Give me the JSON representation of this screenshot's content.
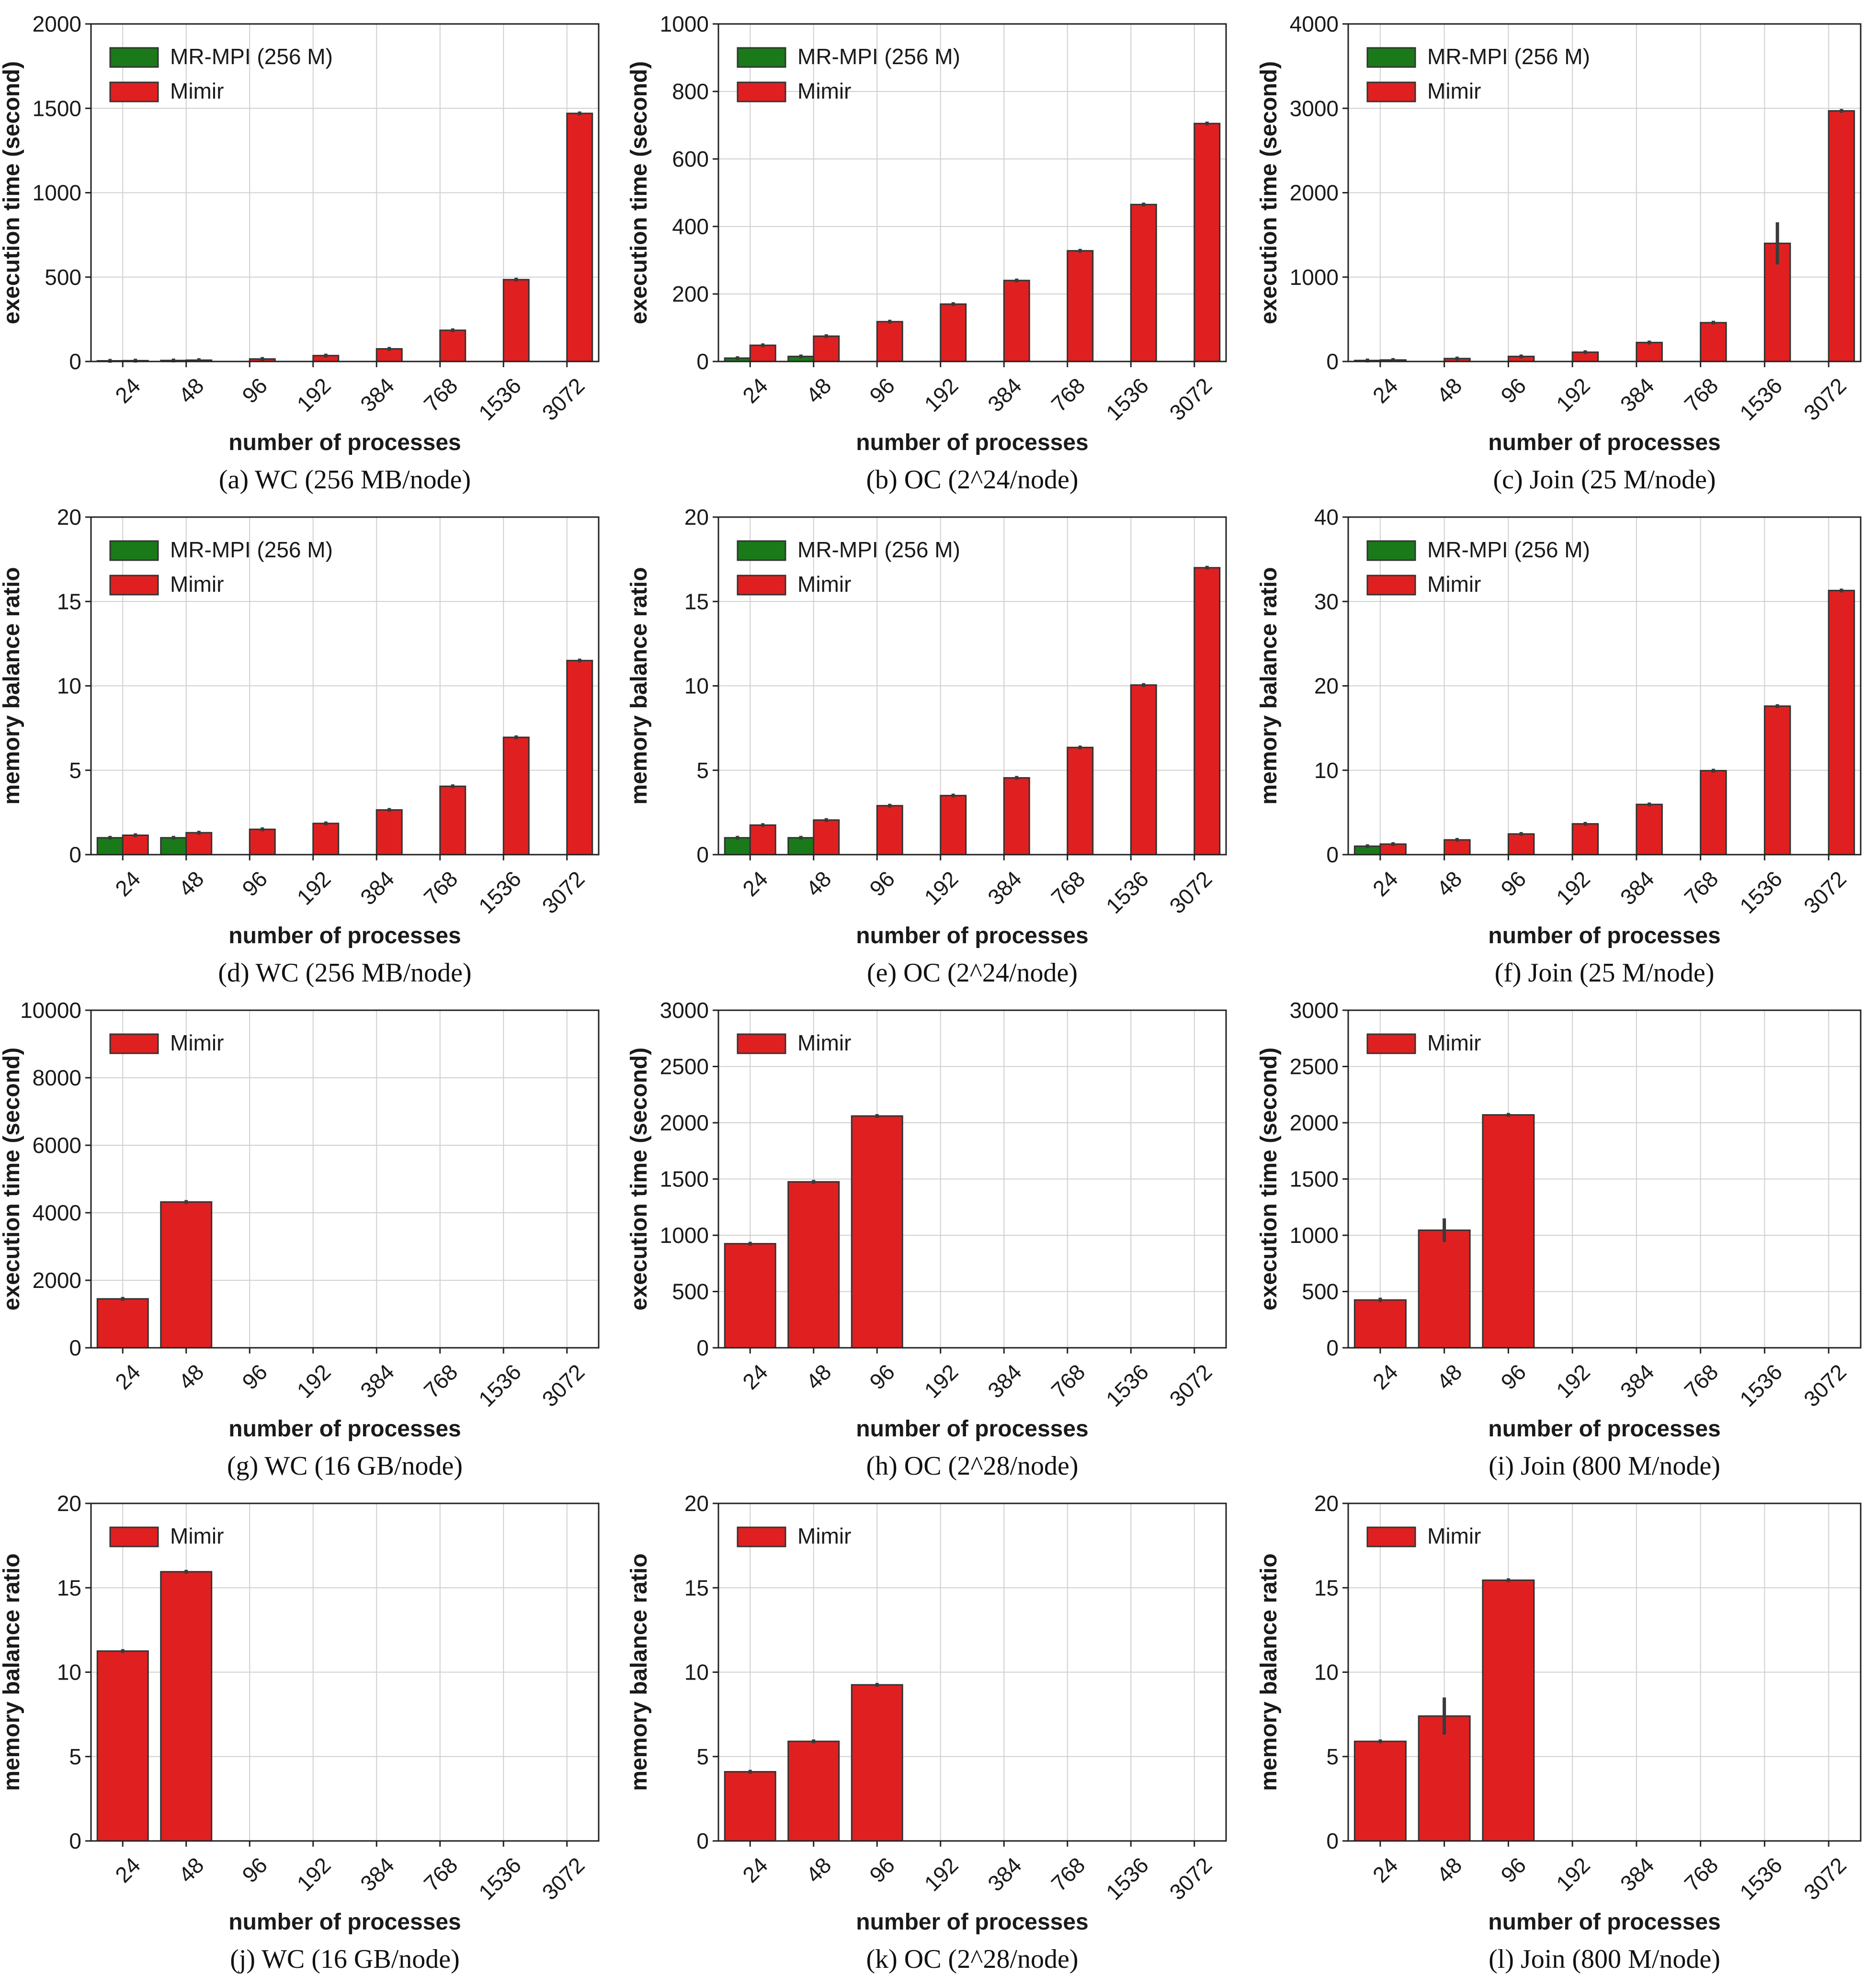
{
  "colors": {
    "mrmpi": "#1a7a1a",
    "mimir": "#e02020",
    "grid": "#d0d0d0",
    "edge": "#333333"
  },
  "chart_data": [
    {
      "type": "bar",
      "caption": "(a) WC (256 MB/node)",
      "xlabel": "number of processes",
      "ylabel": "execution time (second)",
      "categories": [
        "24",
        "48",
        "96",
        "192",
        "384",
        "768",
        "1536",
        "3072"
      ],
      "ylim": [
        0,
        2000
      ],
      "yticks": [
        0,
        500,
        1000,
        1500,
        2000
      ],
      "grid": true,
      "legend_position": "top-left",
      "series": [
        {
          "name": "MR-MPI (256 M)",
          "color": "#1a7a1a",
          "values": [
            4,
            6,
            null,
            null,
            null,
            null,
            null,
            null
          ],
          "errors": [
            0,
            0,
            0,
            0,
            0,
            0,
            0,
            0
          ]
        },
        {
          "name": "Mimir",
          "color": "#e02020",
          "values": [
            5,
            8,
            15,
            35,
            75,
            185,
            485,
            1470
          ],
          "errors": [
            0,
            0,
            0,
            3,
            4,
            4,
            6,
            5
          ]
        }
      ]
    },
    {
      "type": "bar",
      "caption": "(b) OC (2^24/node)",
      "xlabel": "number of processes",
      "ylabel": "execution time (second)",
      "categories": [
        "24",
        "48",
        "96",
        "192",
        "384",
        "768",
        "1536",
        "3072"
      ],
      "ylim": [
        0,
        1000
      ],
      "yticks": [
        0,
        200,
        400,
        600,
        800,
        1000
      ],
      "grid": true,
      "legend_position": "top-left",
      "series": [
        {
          "name": "MR-MPI (256 M)",
          "color": "#1a7a1a",
          "values": [
            10,
            15,
            null,
            null,
            null,
            null,
            null,
            null
          ],
          "errors": [
            0,
            0,
            0,
            0,
            0,
            0,
            0,
            0
          ]
        },
        {
          "name": "Mimir",
          "color": "#e02020",
          "values": [
            48,
            75,
            118,
            170,
            240,
            328,
            465,
            705
          ],
          "errors": [
            1,
            1,
            2,
            2,
            2,
            2,
            3,
            2
          ]
        }
      ]
    },
    {
      "type": "bar",
      "caption": "(c) Join (25 M/node)",
      "xlabel": "number of processes",
      "ylabel": "execution time (second)",
      "categories": [
        "24",
        "48",
        "96",
        "192",
        "384",
        "768",
        "1536",
        "3072"
      ],
      "ylim": [
        0,
        4000
      ],
      "yticks": [
        0,
        1000,
        2000,
        3000,
        4000
      ],
      "grid": true,
      "legend_position": "top-left",
      "series": [
        {
          "name": "MR-MPI (256 M)",
          "color": "#1a7a1a",
          "values": [
            12,
            null,
            null,
            null,
            null,
            null,
            null,
            null
          ],
          "errors": [
            0,
            0,
            0,
            0,
            0,
            0,
            0,
            0
          ]
        },
        {
          "name": "Mimir",
          "color": "#e02020",
          "values": [
            18,
            35,
            60,
            110,
            225,
            460,
            1400,
            2970
          ],
          "errors": [
            0,
            0,
            0,
            5,
            8,
            10,
            250,
            20
          ]
        }
      ]
    },
    {
      "type": "bar",
      "caption": "(d) WC (256 MB/node)",
      "xlabel": "number of processes",
      "ylabel": "memory balance ratio",
      "categories": [
        "24",
        "48",
        "96",
        "192",
        "384",
        "768",
        "1536",
        "3072"
      ],
      "ylim": [
        0,
        20
      ],
      "yticks": [
        0,
        5,
        10,
        15,
        20
      ],
      "grid": true,
      "legend_position": "top-left",
      "series": [
        {
          "name": "MR-MPI (256 M)",
          "color": "#1a7a1a",
          "values": [
            1.0,
            1.0,
            null,
            null,
            null,
            null,
            null,
            null
          ],
          "errors": [
            0,
            0,
            0,
            0,
            0,
            0,
            0,
            0
          ]
        },
        {
          "name": "Mimir",
          "color": "#e02020",
          "values": [
            1.15,
            1.3,
            1.5,
            1.85,
            2.65,
            4.05,
            6.95,
            11.5
          ],
          "errors": [
            0,
            0,
            0,
            0,
            0,
            0,
            0,
            0
          ]
        }
      ]
    },
    {
      "type": "bar",
      "caption": "(e) OC (2^24/node)",
      "xlabel": "number of processes",
      "ylabel": "memory balance ratio",
      "categories": [
        "24",
        "48",
        "96",
        "192",
        "384",
        "768",
        "1536",
        "3072"
      ],
      "ylim": [
        0,
        20
      ],
      "yticks": [
        0,
        5,
        10,
        15,
        20
      ],
      "grid": true,
      "legend_position": "top-left",
      "series": [
        {
          "name": "MR-MPI (256 M)",
          "color": "#1a7a1a",
          "values": [
            1.0,
            1.0,
            null,
            null,
            null,
            null,
            null,
            null
          ],
          "errors": [
            0,
            0,
            0,
            0,
            0,
            0,
            0,
            0
          ]
        },
        {
          "name": "Mimir",
          "color": "#e02020",
          "values": [
            1.75,
            2.05,
            2.9,
            3.5,
            4.55,
            6.35,
            10.05,
            17.0
          ],
          "errors": [
            0,
            0,
            0,
            0.1,
            0.08,
            0.05,
            0,
            0
          ]
        }
      ]
    },
    {
      "type": "bar",
      "caption": "(f) Join (25 M/node)",
      "xlabel": "number of processes",
      "ylabel": "memory balance ratio",
      "categories": [
        "24",
        "48",
        "96",
        "192",
        "384",
        "768",
        "1536",
        "3072"
      ],
      "ylim": [
        0,
        40
      ],
      "yticks": [
        0,
        10,
        20,
        30,
        40
      ],
      "grid": true,
      "legend_position": "top-left",
      "series": [
        {
          "name": "MR-MPI (256 M)",
          "color": "#1a7a1a",
          "values": [
            1.0,
            null,
            null,
            null,
            null,
            null,
            null,
            null
          ],
          "errors": [
            0,
            0,
            0,
            0,
            0,
            0,
            0,
            0
          ]
        },
        {
          "name": "Mimir",
          "color": "#e02020",
          "values": [
            1.25,
            1.75,
            2.45,
            3.65,
            5.95,
            9.95,
            17.6,
            31.3
          ],
          "errors": [
            0,
            0,
            0,
            0,
            0,
            0.1,
            0.1,
            0
          ]
        }
      ]
    },
    {
      "type": "bar",
      "caption": "(g) WC (16 GB/node)",
      "xlabel": "number of processes",
      "ylabel": "execution time (second)",
      "categories": [
        "24",
        "48",
        "96",
        "192",
        "384",
        "768",
        "1536",
        "3072"
      ],
      "ylim": [
        0,
        10000
      ],
      "yticks": [
        0,
        2000,
        4000,
        6000,
        8000,
        10000
      ],
      "grid": true,
      "legend_position": "top-left",
      "series": [
        {
          "name": "Mimir",
          "color": "#e02020",
          "values": [
            1450,
            4320,
            null,
            null,
            null,
            null,
            null,
            null
          ],
          "errors": [
            10,
            20,
            0,
            0,
            0,
            0,
            0,
            0
          ]
        }
      ]
    },
    {
      "type": "bar",
      "caption": "(h) OC (2^28/node)",
      "xlabel": "number of processes",
      "ylabel": "execution time (second)",
      "categories": [
        "24",
        "48",
        "96",
        "192",
        "384",
        "768",
        "1536",
        "3072"
      ],
      "ylim": [
        0,
        3000
      ],
      "yticks": [
        0,
        500,
        1000,
        1500,
        2000,
        2500,
        3000
      ],
      "grid": true,
      "legend_position": "top-left",
      "series": [
        {
          "name": "Mimir",
          "color": "#e02020",
          "values": [
            925,
            1475,
            2060,
            null,
            null,
            null,
            null,
            null
          ],
          "errors": [
            5,
            8,
            10,
            0,
            0,
            0,
            0,
            0
          ]
        }
      ]
    },
    {
      "type": "bar",
      "caption": "(i) Join (800 M/node)",
      "xlabel": "number of processes",
      "ylabel": "execution time (second)",
      "categories": [
        "24",
        "48",
        "96",
        "192",
        "384",
        "768",
        "1536",
        "3072"
      ],
      "ylim": [
        0,
        3000
      ],
      "yticks": [
        0,
        500,
        1000,
        1500,
        2000,
        2500,
        3000
      ],
      "grid": true,
      "legend_position": "top-left",
      "series": [
        {
          "name": "Mimir",
          "color": "#e02020",
          "values": [
            425,
            1045,
            2070,
            null,
            null,
            null,
            null,
            null
          ],
          "errors": [
            20,
            105,
            15,
            0,
            0,
            0,
            0,
            0
          ]
        }
      ]
    },
    {
      "type": "bar",
      "caption": "(j) WC (16 GB/node)",
      "xlabel": "number of processes",
      "ylabel": "memory balance ratio",
      "categories": [
        "24",
        "48",
        "96",
        "192",
        "384",
        "768",
        "1536",
        "3072"
      ],
      "ylim": [
        0,
        20
      ],
      "yticks": [
        0,
        5,
        10,
        15,
        20
      ],
      "grid": true,
      "legend_position": "top-left",
      "series": [
        {
          "name": "Mimir",
          "color": "#e02020",
          "values": [
            11.25,
            15.95,
            null,
            null,
            null,
            null,
            null,
            null
          ],
          "errors": [
            0,
            0,
            0,
            0,
            0,
            0,
            0,
            0
          ]
        }
      ]
    },
    {
      "type": "bar",
      "caption": "(k) OC (2^28/node)",
      "xlabel": "number of processes",
      "ylabel": "memory balance ratio",
      "categories": [
        "24",
        "48",
        "96",
        "192",
        "384",
        "768",
        "1536",
        "3072"
      ],
      "ylim": [
        0,
        20
      ],
      "yticks": [
        0,
        5,
        10,
        15,
        20
      ],
      "grid": true,
      "legend_position": "top-left",
      "series": [
        {
          "name": "Mimir",
          "color": "#e02020",
          "values": [
            4.1,
            5.9,
            9.25,
            null,
            null,
            null,
            null,
            null
          ],
          "errors": [
            0,
            0,
            0,
            0,
            0,
            0,
            0,
            0
          ]
        }
      ]
    },
    {
      "type": "bar",
      "caption": "(l) Join (800 M/node)",
      "xlabel": "number of processes",
      "ylabel": "memory balance ratio",
      "categories": [
        "24",
        "48",
        "96",
        "192",
        "384",
        "768",
        "1536",
        "3072"
      ],
      "ylim": [
        0,
        20
      ],
      "yticks": [
        0,
        5,
        10,
        15,
        20
      ],
      "grid": true,
      "legend_position": "top-left",
      "series": [
        {
          "name": "Mimir",
          "color": "#e02020",
          "values": [
            5.9,
            7.4,
            15.45,
            null,
            null,
            null,
            null,
            null
          ],
          "errors": [
            0,
            1.1,
            0,
            0,
            0,
            0,
            0,
            0
          ]
        }
      ]
    }
  ]
}
